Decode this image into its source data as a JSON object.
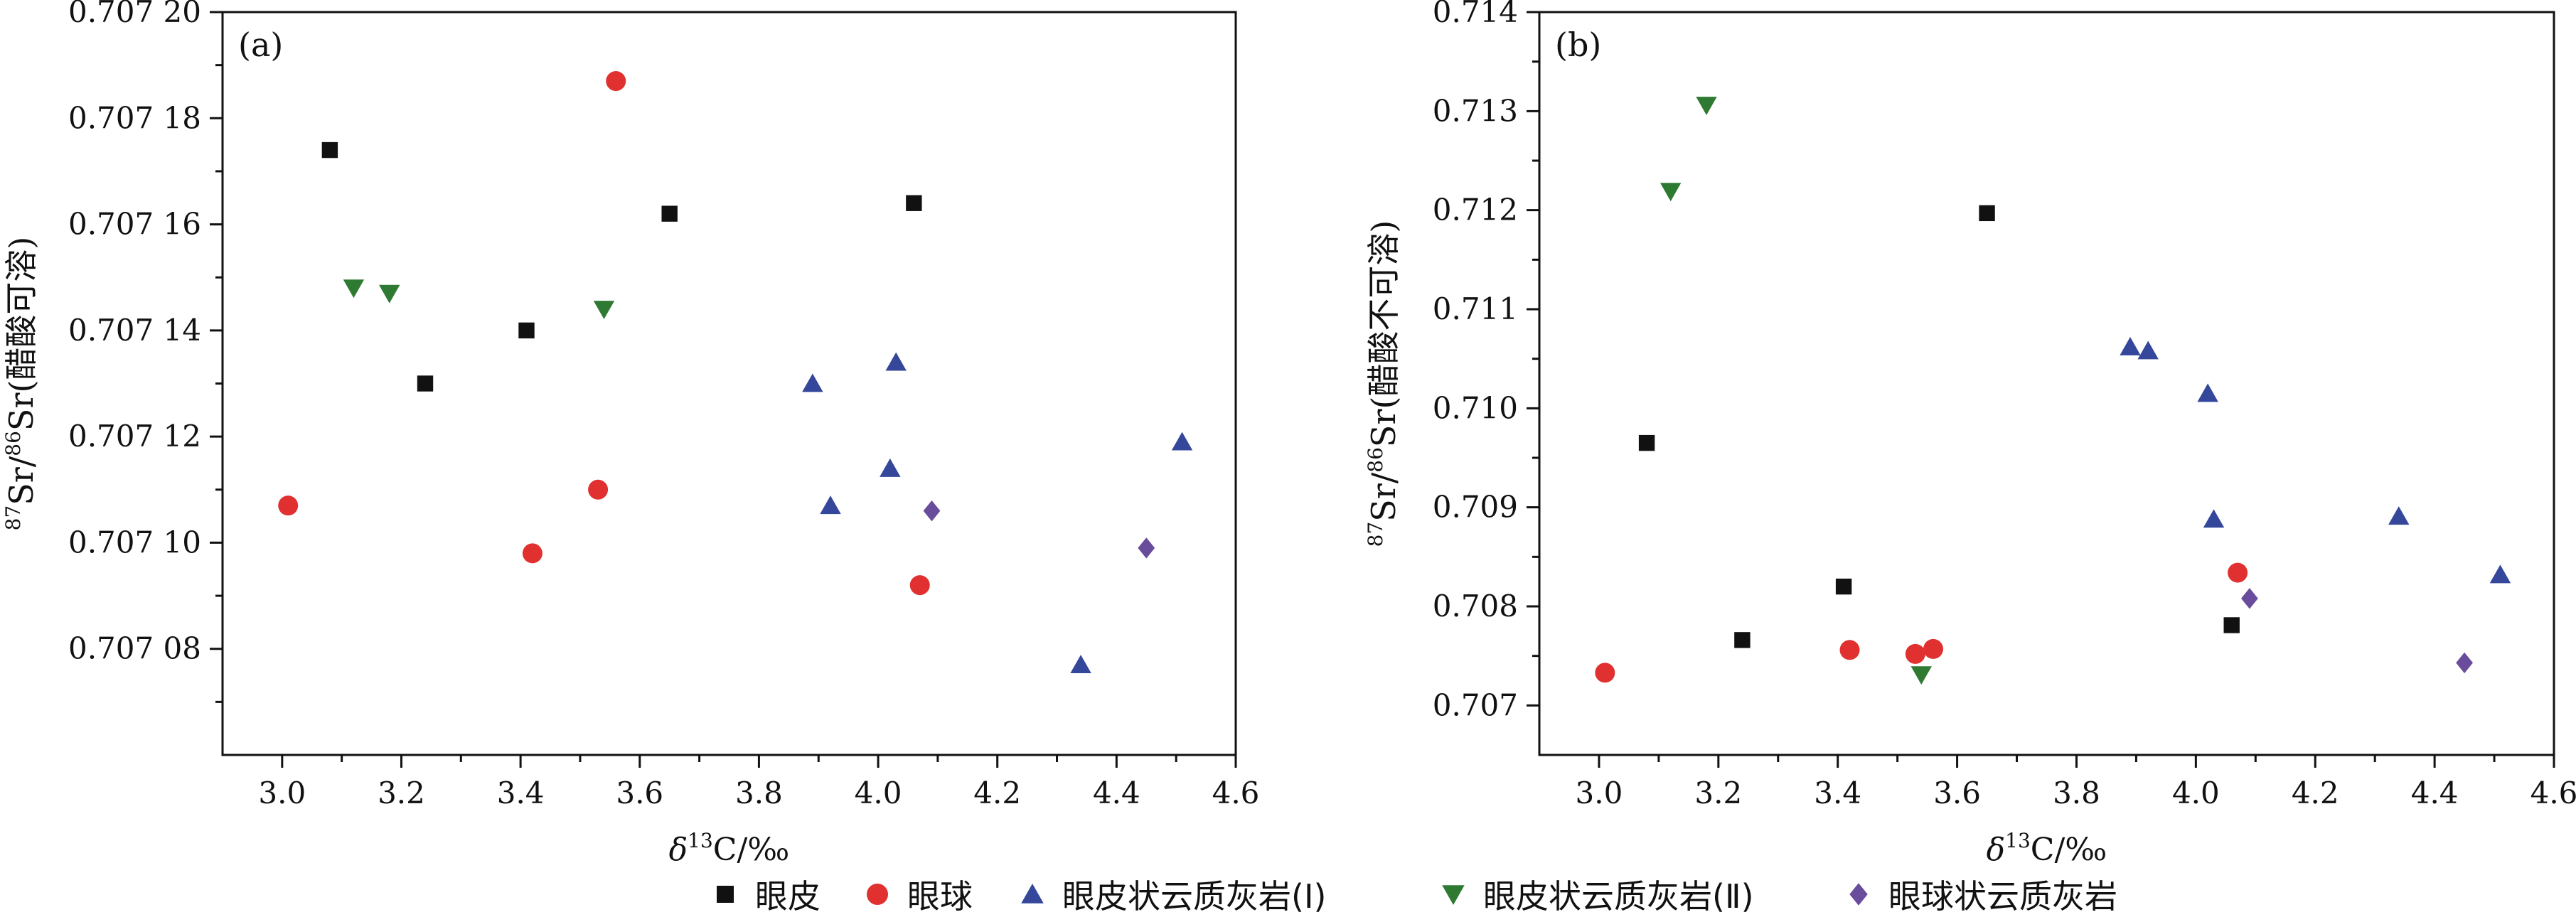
{
  "figure": {
    "series_styles": [
      {
        "name": "眼皮",
        "marker": "square",
        "color": "#111111"
      },
      {
        "name": "眼球",
        "marker": "circle",
        "color": "#e03030"
      },
      {
        "name": "眼皮状云质灰岩(Ⅰ)",
        "marker": "triangle-up",
        "color": "#34479a"
      },
      {
        "name": "眼皮状云质灰岩(Ⅱ)",
        "marker": "triangle-down",
        "color": "#2e7a32"
      },
      {
        "name": "眼球状云质灰岩",
        "marker": "diamond",
        "color": "#6a4c9c"
      }
    ],
    "legend": {
      "items": [
        {
          "label": "眼皮"
        },
        {
          "label": "眼球"
        },
        {
          "label": "眼皮状云质灰岩(Ⅰ)"
        },
        {
          "label": "眼皮状云质灰岩(Ⅱ)"
        },
        {
          "label": "眼球状云质灰岩"
        }
      ]
    }
  },
  "chart_data": [
    {
      "type": "scatter",
      "panel_label": "(a)",
      "xlabel": "δ13C/‰",
      "ylabel": "87Sr/86Sr(醋酸可溶)",
      "xlim": [
        2.9,
        4.6
      ],
      "ylim": [
        0.70706,
        0.7072
      ],
      "x_ticks": [
        3.0,
        3.2,
        3.4,
        3.6,
        3.8,
        4.0,
        4.2,
        4.4,
        4.6
      ],
      "x_tick_labels": [
        "3.0",
        "3.2",
        "3.4",
        "3.6",
        "3.8",
        "4.0",
        "4.2",
        "4.4",
        "4.6"
      ],
      "y_ticks": [
        0.70708,
        0.7071,
        0.70712,
        0.70714,
        0.70716,
        0.70718,
        0.7072
      ],
      "y_tick_labels": [
        "0.707 08",
        "0.707 10",
        "0.707 12",
        "0.707 14",
        "0.707 16",
        "0.707 18",
        "0.707 20"
      ],
      "series": [
        {
          "name": "眼皮",
          "points": [
            [
              3.08,
              0.707174
            ],
            [
              3.24,
              0.70713
            ],
            [
              3.41,
              0.70714
            ],
            [
              3.65,
              0.707162
            ],
            [
              4.06,
              0.707164
            ]
          ]
        },
        {
          "name": "眼球",
          "points": [
            [
              3.01,
              0.707107
            ],
            [
              3.42,
              0.707098
            ],
            [
              3.53,
              0.70711
            ],
            [
              3.56,
              0.707187
            ],
            [
              4.07,
              0.707092
            ]
          ]
        },
        {
          "name": "眼皮状云质灰岩(Ⅰ)",
          "points": [
            [
              3.89,
              0.70713
            ],
            [
              3.92,
              0.707107
            ],
            [
              4.02,
              0.707114
            ],
            [
              4.03,
              0.707134
            ],
            [
              4.34,
              0.707077
            ],
            [
              4.51,
              0.707119
            ]
          ]
        },
        {
          "name": "眼皮状云质灰岩(Ⅱ)",
          "points": [
            [
              3.12,
              0.707148
            ],
            [
              3.18,
              0.707147
            ],
            [
              3.54,
              0.707144
            ]
          ]
        },
        {
          "name": "眼球状云质灰岩",
          "points": [
            [
              4.09,
              0.707106
            ],
            [
              4.45,
              0.707099
            ]
          ]
        }
      ]
    },
    {
      "type": "scatter",
      "panel_label": "(b)",
      "xlabel": "δ13C/‰",
      "ylabel": "87Sr/86Sr(醋酸不可溶)",
      "xlim": [
        2.9,
        4.6
      ],
      "ylim": [
        0.7065,
        0.714
      ],
      "x_ticks": [
        3.0,
        3.2,
        3.4,
        3.6,
        3.8,
        4.0,
        4.2,
        4.4,
        4.6
      ],
      "x_tick_labels": [
        "3.0",
        "3.2",
        "3.4",
        "3.6",
        "3.8",
        "4.0",
        "4.2",
        "4.4",
        "4.6"
      ],
      "y_ticks": [
        0.707,
        0.708,
        0.709,
        0.71,
        0.711,
        0.712,
        0.713,
        0.714
      ],
      "y_tick_labels": [
        "0.707",
        "0.708",
        "0.709",
        "0.710",
        "0.711",
        "0.712",
        "0.713",
        "0.714"
      ],
      "series": [
        {
          "name": "眼皮",
          "points": [
            [
              3.08,
              0.70965
            ],
            [
              3.24,
              0.70766
            ],
            [
              3.41,
              0.7082
            ],
            [
              3.65,
              0.71197
            ],
            [
              4.06,
              0.70781
            ]
          ]
        },
        {
          "name": "眼球",
          "points": [
            [
              3.01,
              0.70733
            ],
            [
              3.42,
              0.70756
            ],
            [
              3.53,
              0.70752
            ],
            [
              3.56,
              0.70757
            ],
            [
              4.07,
              0.70834
            ]
          ]
        },
        {
          "name": "眼皮状云质灰岩(Ⅰ)",
          "points": [
            [
              3.89,
              0.71062
            ],
            [
              3.92,
              0.71058
            ],
            [
              4.02,
              0.71015
            ],
            [
              4.03,
              0.70888
            ],
            [
              4.34,
              0.70891
            ],
            [
              4.51,
              0.70832
            ]
          ]
        },
        {
          "name": "眼皮状云质灰岩(Ⅱ)",
          "points": [
            [
              3.12,
              0.71219
            ],
            [
              3.18,
              0.71306
            ],
            [
              3.54,
              0.70731
            ]
          ]
        },
        {
          "name": "眼球状云质灰岩",
          "points": [
            [
              4.09,
              0.70808
            ],
            [
              4.45,
              0.70743
            ]
          ]
        }
      ]
    }
  ]
}
